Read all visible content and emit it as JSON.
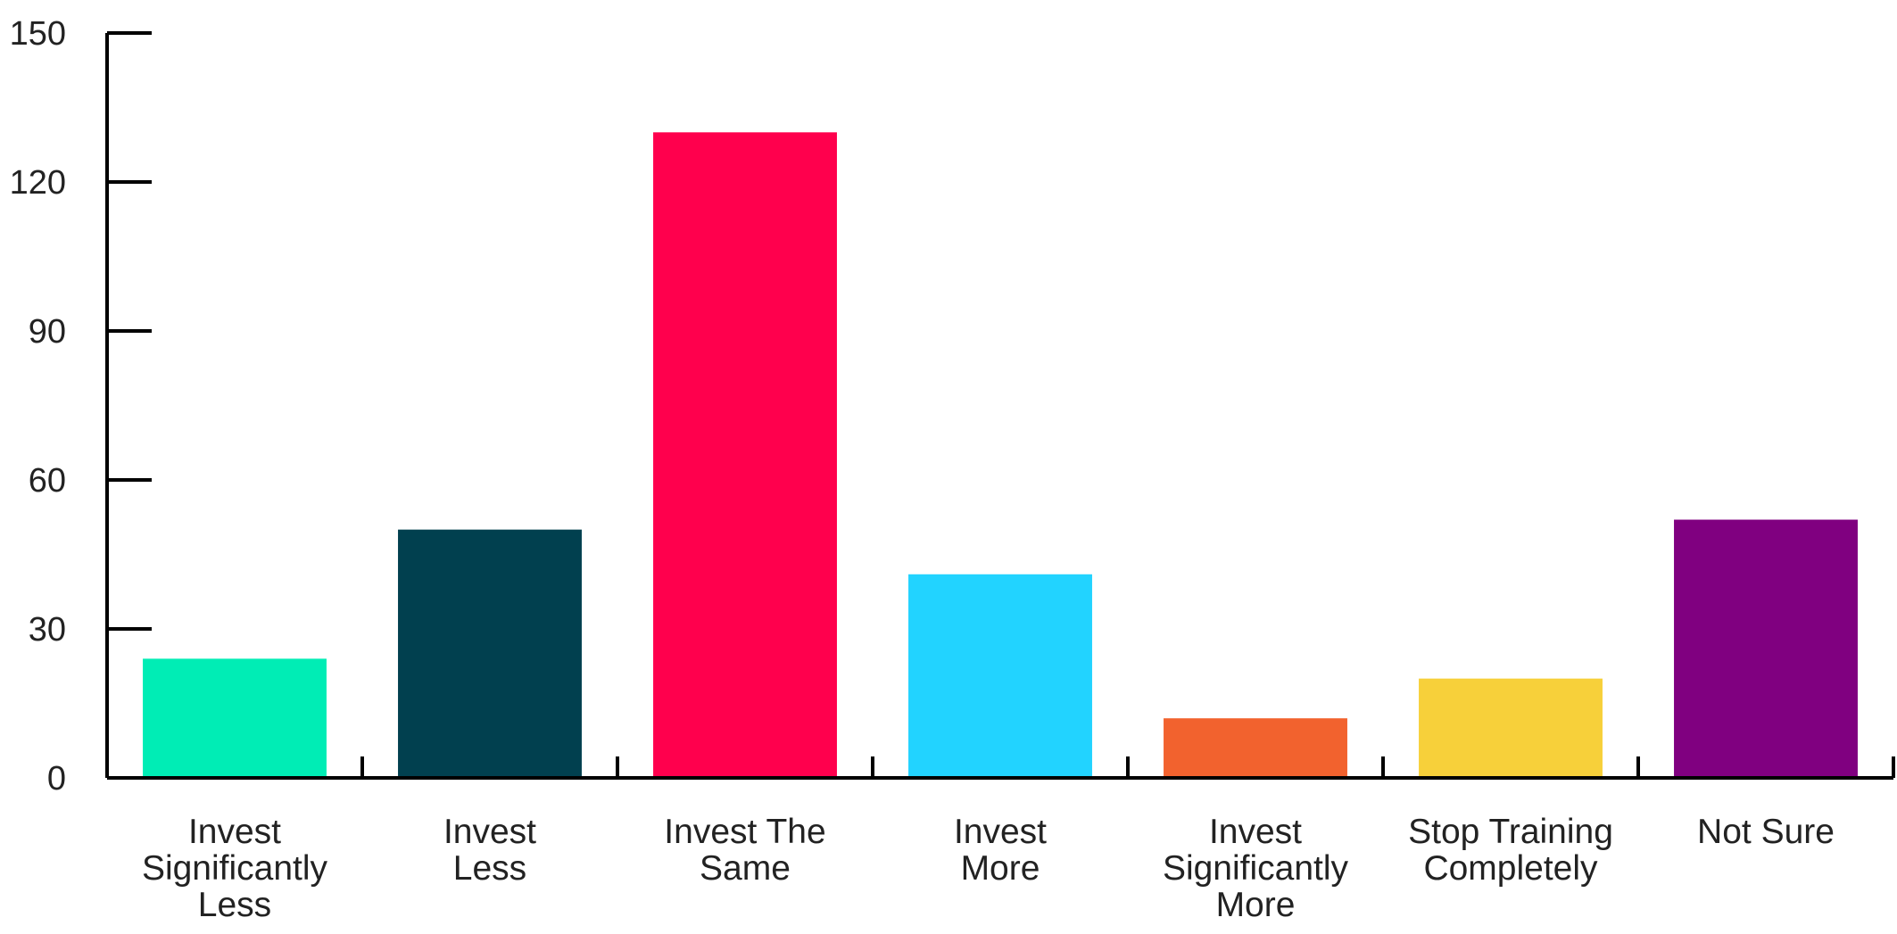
{
  "chart_data": {
    "type": "bar",
    "title": "",
    "xlabel": "",
    "ylabel": "",
    "ylim": [
      0,
      150
    ],
    "yticks": [
      0,
      30,
      60,
      90,
      120,
      150
    ],
    "grid": false,
    "categories": [
      [
        "Invest",
        "Significantly",
        "Less"
      ],
      [
        "Invest",
        "Less"
      ],
      [
        "Invest The",
        "Same"
      ],
      [
        "Invest",
        "More"
      ],
      [
        "Invest",
        "Significantly",
        "More"
      ],
      [
        "Stop Training",
        "Completely"
      ],
      [
        "Not Sure"
      ]
    ],
    "values": [
      24,
      50,
      130,
      41,
      12,
      20,
      52
    ],
    "colors": [
      "#00EDB5",
      "#01404F",
      "#FF004D",
      "#22D3FF",
      "#F2622E",
      "#F7D03A",
      "#800080"
    ]
  }
}
